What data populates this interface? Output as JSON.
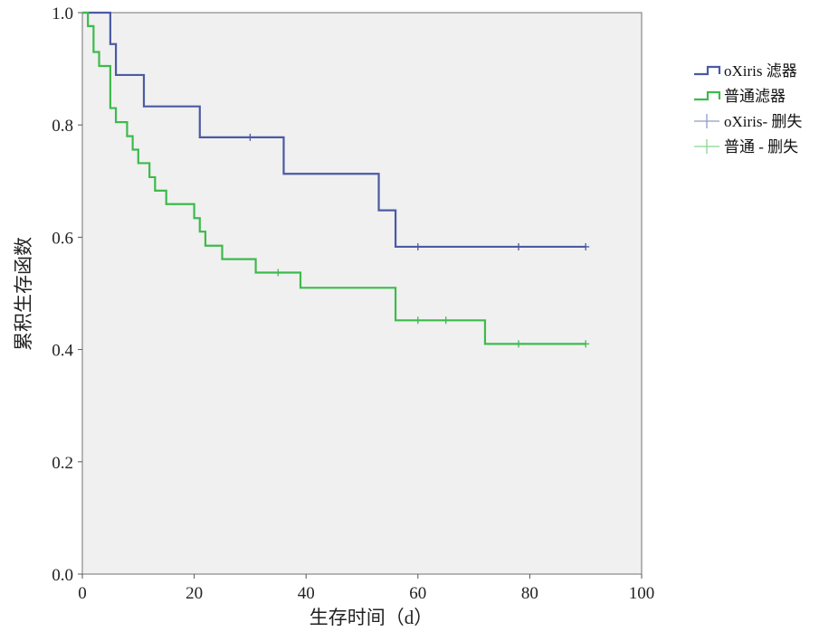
{
  "chart_data": {
    "type": "line",
    "subtype": "kaplan-meier step",
    "xlabel": "生存时间（d）",
    "ylabel": "累积生存函数",
    "xlim": [
      0,
      100
    ],
    "ylim": [
      0,
      1.0
    ],
    "xticks": [
      "0",
      "20",
      "40",
      "60",
      "80",
      "100"
    ],
    "yticks": [
      "0.0",
      "0.2",
      "0.4",
      "0.6",
      "0.8",
      "1.0"
    ],
    "legend_position": "right",
    "legend": [
      "oXiris 滤器",
      "普通滤器",
      "oXiris- 删失",
      "普通 - 删失"
    ],
    "series": [
      {
        "name": "oXiris 滤器",
        "color": "#4b5aa3",
        "steps": [
          [
            0,
            1.0
          ],
          [
            5,
            0.944
          ],
          [
            6,
            0.889
          ],
          [
            11,
            0.833
          ],
          [
            21,
            0.778
          ],
          [
            36,
            0.713
          ],
          [
            53,
            0.648
          ],
          [
            56,
            0.583
          ]
        ],
        "end": 90,
        "censored": [
          [
            30,
            0.778
          ],
          [
            60,
            0.583
          ],
          [
            78,
            0.583
          ],
          [
            90,
            0.583
          ]
        ]
      },
      {
        "name": "普通滤器",
        "color": "#3dba4c",
        "steps": [
          [
            0,
            1.0
          ],
          [
            1,
            0.976
          ],
          [
            2,
            0.93
          ],
          [
            3,
            0.905
          ],
          [
            5,
            0.83
          ],
          [
            6,
            0.805
          ],
          [
            8,
            0.78
          ],
          [
            9,
            0.756
          ],
          [
            10,
            0.732
          ],
          [
            12,
            0.707
          ],
          [
            13,
            0.683
          ],
          [
            15,
            0.659
          ],
          [
            20,
            0.634
          ],
          [
            21,
            0.61
          ],
          [
            22,
            0.585
          ],
          [
            25,
            0.561
          ],
          [
            31,
            0.537
          ],
          [
            39,
            0.51
          ],
          [
            56,
            0.452
          ],
          [
            72,
            0.41
          ]
        ],
        "end": 90,
        "censored": [
          [
            35,
            0.537
          ],
          [
            60,
            0.452
          ],
          [
            65,
            0.452
          ],
          [
            78,
            0.41
          ],
          [
            90,
            0.41
          ]
        ]
      }
    ]
  }
}
